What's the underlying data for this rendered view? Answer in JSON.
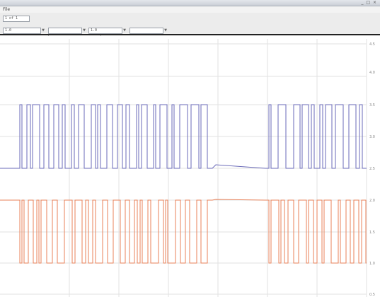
{
  "window": {
    "controls": "_ □ ×"
  },
  "menu": {
    "label": "File"
  },
  "toolbar": {
    "page_field": "1 of 1",
    "tools": [
      {
        "icon": "pointer-icon",
        "glyph": "↖"
      },
      {
        "icon": "hand-icon",
        "glyph": "✋"
      },
      {
        "icon": "zoom-in-icon",
        "glyph": "⊕"
      },
      {
        "icon": "zoom-out-icon",
        "glyph": "⊖"
      },
      {
        "icon": "zoom-fit-icon",
        "glyph": "⊙"
      },
      {
        "icon": "zoom-box-icon",
        "glyph": "⌕"
      }
    ],
    "dropdown_1": "1.0",
    "dropdown_2": "1.0"
  },
  "plot": {
    "y_ticks_right": [
      "",
      "4.5",
      "4.0",
      "3.5",
      "3.0",
      "2.5",
      "2.0",
      "1.5",
      "1.0",
      "0.5"
    ],
    "colors": {
      "channel_a": "#6a6ab8",
      "channel_b": "#e8825a",
      "grid": "#e2e2e2"
    }
  }
}
